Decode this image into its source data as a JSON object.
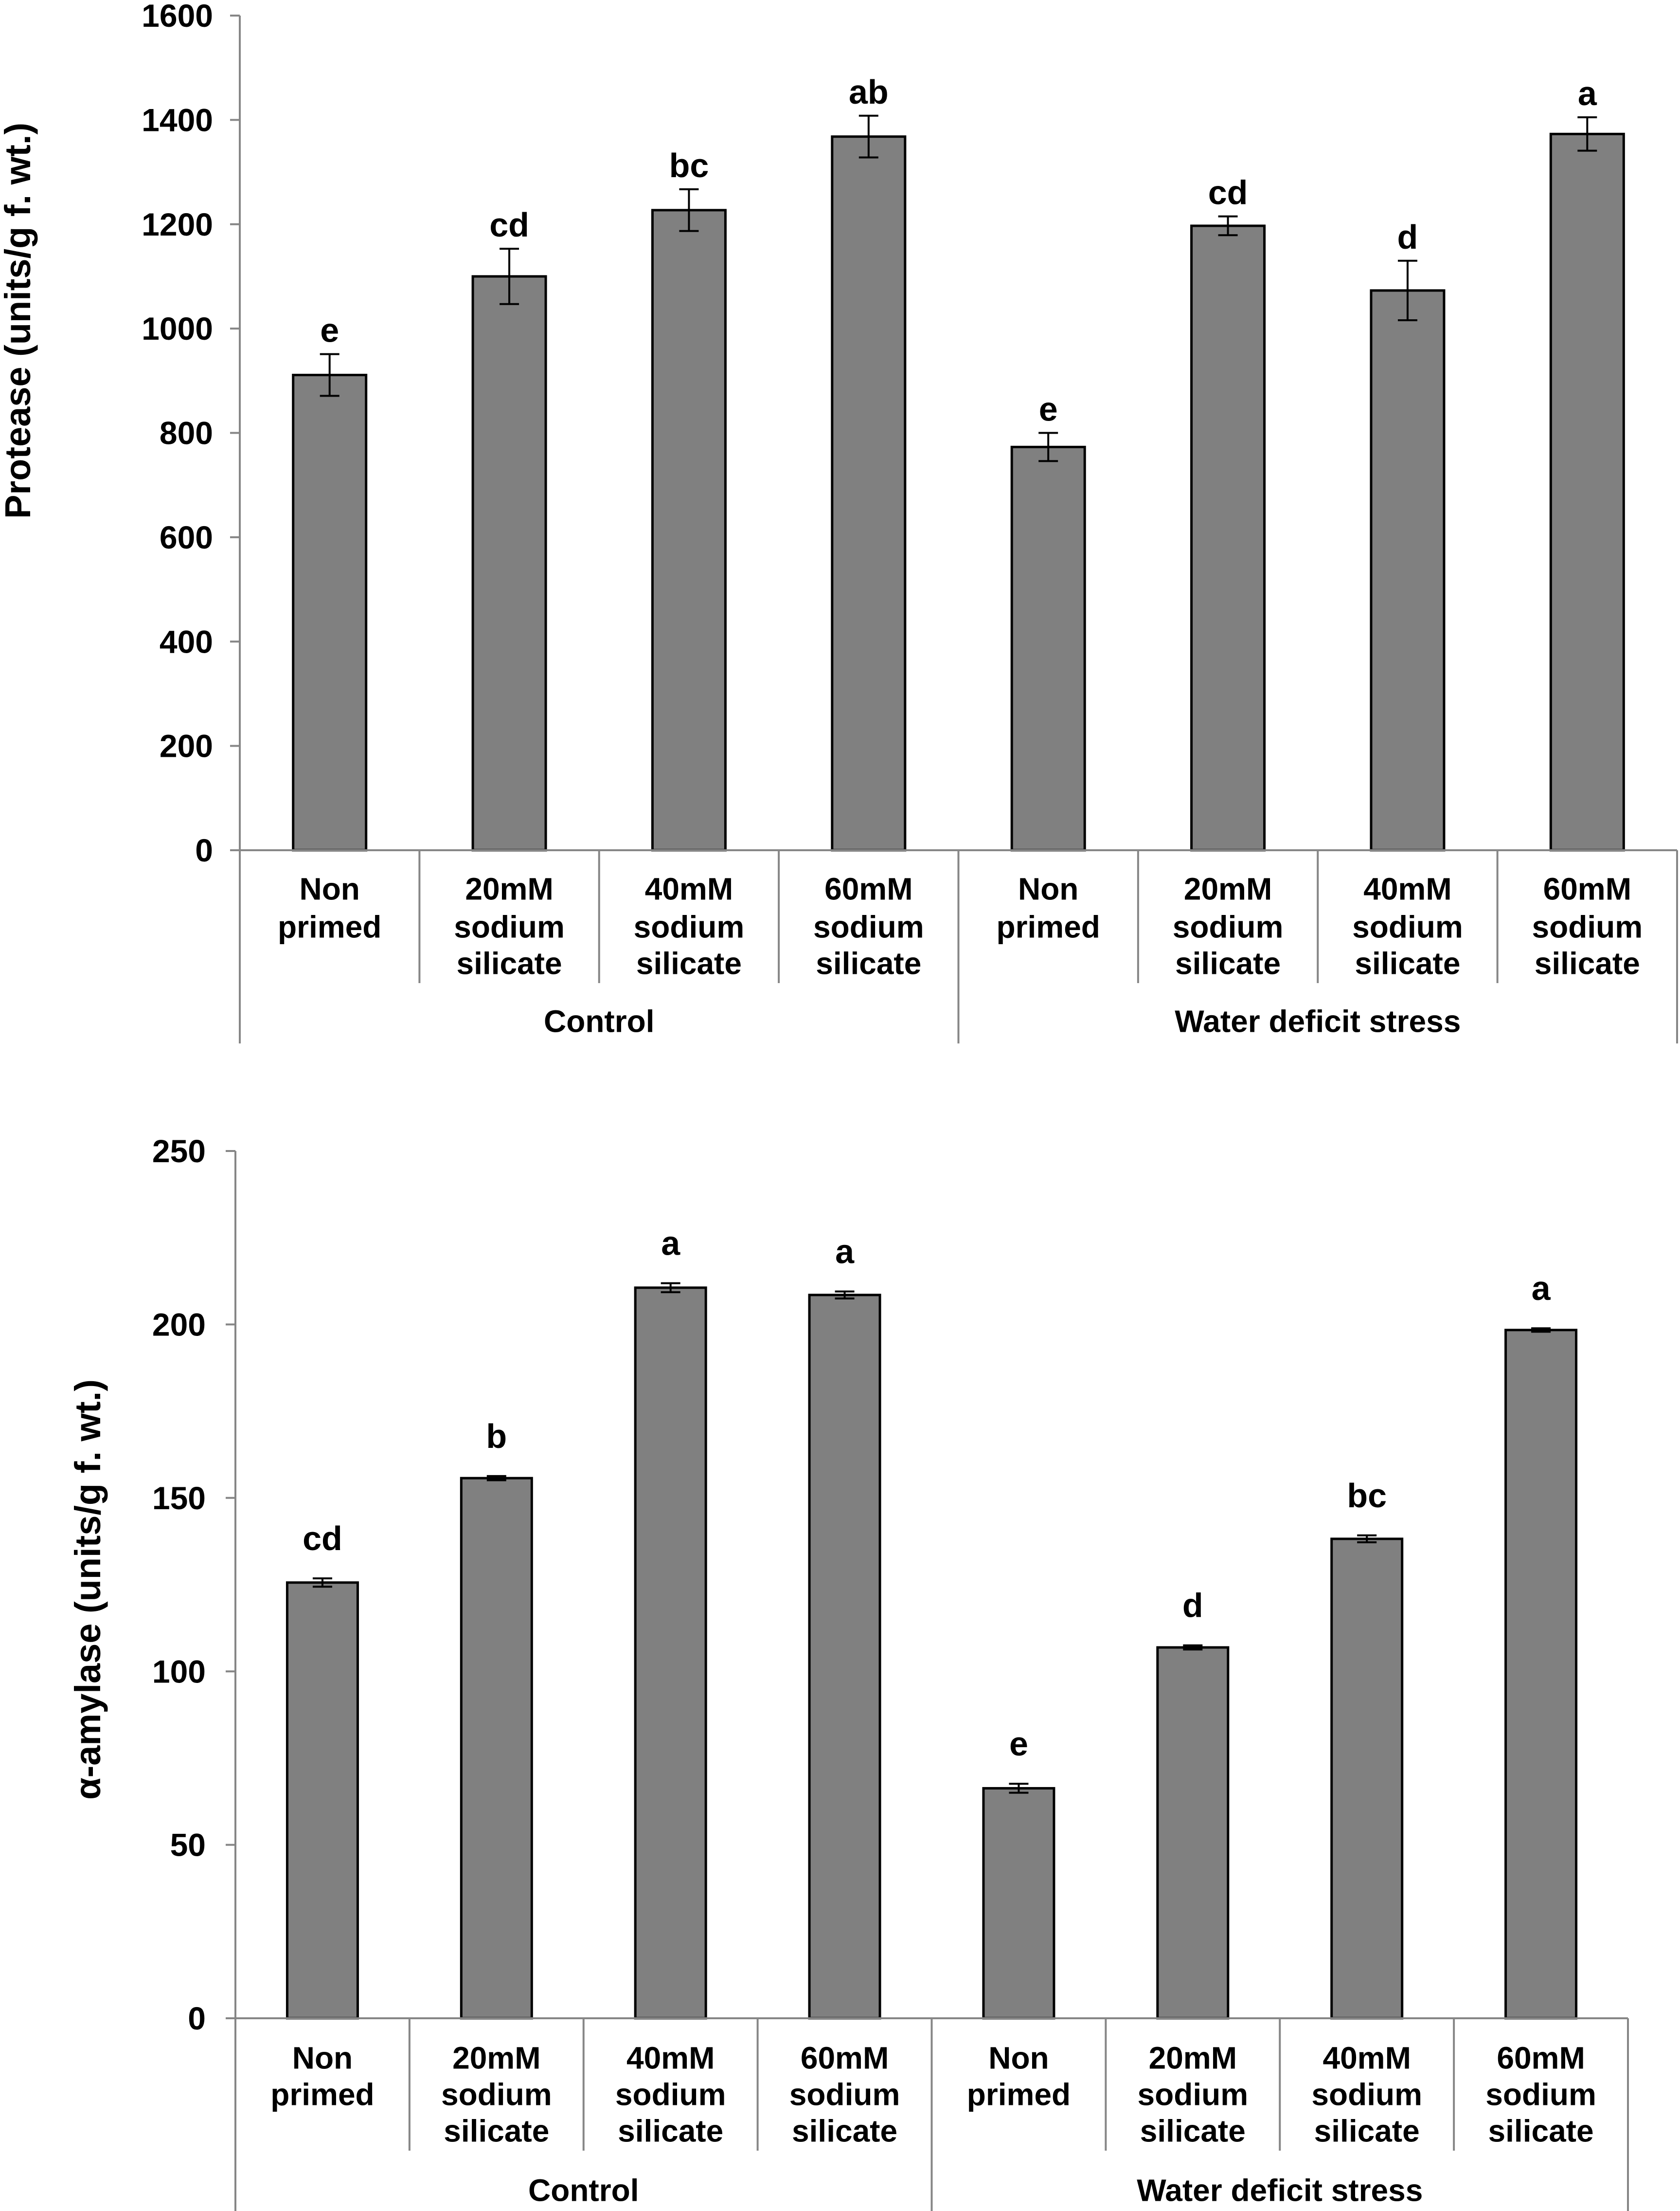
{
  "chart_data": [
    {
      "type": "bar",
      "ylabel": "Protease (units/g f. wt.)",
      "xlabel": "",
      "ylim": [
        0,
        1600
      ],
      "yticks": [
        0,
        200,
        400,
        600,
        800,
        1000,
        1200,
        1400,
        1600
      ],
      "categories": [
        [
          "Non",
          "primed"
        ],
        [
          "20mM",
          "sodium",
          "silicate"
        ],
        [
          "40mM",
          "sodium",
          "silicate"
        ],
        [
          "60mM",
          "sodium",
          "silicate"
        ],
        [
          "Non",
          "primed"
        ],
        [
          "20mM",
          "sodium",
          "silicate"
        ],
        [
          "40mM",
          "sodium",
          "silicate"
        ],
        [
          "60mM",
          "sodium",
          "silicate"
        ]
      ],
      "groups": [
        {
          "label": "Control",
          "count": 4
        },
        {
          "label": "Water deficit stress",
          "count": 4
        }
      ],
      "series": [
        {
          "values": [
            911,
            1100,
            1227,
            1368,
            773,
            1197,
            1073,
            1373
          ],
          "errors": [
            40,
            53,
            40,
            40,
            27,
            18,
            57,
            32
          ],
          "significance": [
            "e",
            "cd",
            "bc",
            "ab",
            "e",
            "cd",
            "d",
            "a"
          ]
        }
      ],
      "grid": false,
      "colors": {
        "bar": "#808080",
        "bar_outline": "#000000",
        "axis": "#868686",
        "error": "#000000"
      }
    },
    {
      "type": "bar",
      "ylabel": "α-amylase (units/g f. wt.)",
      "xlabel": "",
      "ylim": [
        0,
        250
      ],
      "yticks": [
        0,
        50,
        100,
        150,
        200,
        250
      ],
      "categories": [
        [
          "Non",
          "primed"
        ],
        [
          "20mM",
          "sodium",
          "silicate"
        ],
        [
          "40mM",
          "sodium",
          "silicate"
        ],
        [
          "60mM",
          "sodium",
          "silicate"
        ],
        [
          "Non",
          "primed"
        ],
        [
          "20mM",
          "sodium",
          "silicate"
        ],
        [
          "40mM",
          "sodium",
          "silicate"
        ],
        [
          "60mM",
          "sodium",
          "silicate"
        ]
      ],
      "groups": [
        {
          "label": "Control",
          "count": 4
        },
        {
          "label": "Water deficit stress",
          "count": 4
        }
      ],
      "series": [
        {
          "values": [
            125.6,
            155.7,
            210.6,
            208.5,
            66.3,
            106.9,
            138.2,
            198.4
          ],
          "errors": [
            1.2,
            0.6,
            1.3,
            1.0,
            1.3,
            0.6,
            1.0,
            0.5
          ],
          "significance": [
            "cd",
            "b",
            "a",
            "a",
            "e",
            "d",
            "bc",
            "a"
          ]
        }
      ],
      "grid": false,
      "colors": {
        "bar": "#808080",
        "bar_outline": "#000000",
        "axis": "#868686",
        "error": "#000000"
      }
    }
  ]
}
